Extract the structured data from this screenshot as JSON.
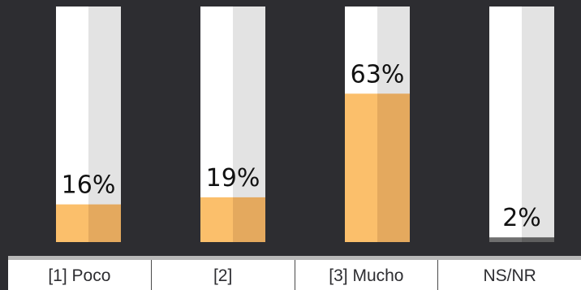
{
  "chart_data": {
    "type": "bar",
    "categories": [
      "[1] Poco",
      "[2]",
      "[3] Mucho",
      "NS/NR"
    ],
    "values": [
      16,
      19,
      63,
      2
    ],
    "value_labels": [
      "16%",
      "19%",
      "63%",
      "2%"
    ],
    "ylim": [
      0,
      100
    ],
    "grid": false,
    "colors": {
      "background": "#2d2d31",
      "track_left": "#ffffff",
      "track_right": "#e3e3e3",
      "fill_left_main": "#fbbf6b",
      "fill_right_main": "#e4a95e",
      "fill_left_nsnr": "#6f6f6f",
      "fill_right_nsnr": "#5f5f5f",
      "label_text": "#111111",
      "table_text": "#2d2d31"
    }
  }
}
